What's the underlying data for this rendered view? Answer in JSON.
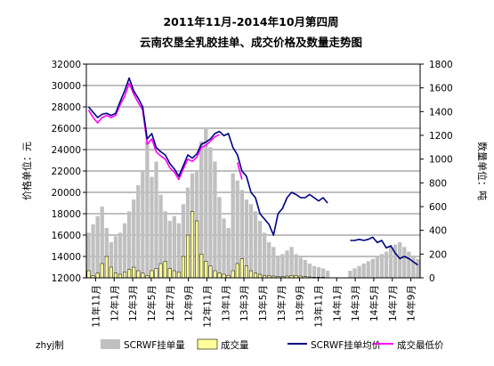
{
  "chart_data": {
    "type": "line",
    "title": "2011年11月-2014年10月第四周",
    "subtitle": "云南农垦全乳胶挂单、成交价格及数量走势图",
    "ylabel_left": "价格单位：元",
    "ylabel_right": "数量单位：吨",
    "y_left": {
      "min": 12000,
      "max": 32000,
      "ticks": [
        "12000",
        "14000",
        "16000",
        "18000",
        "20000",
        "22000",
        "24000",
        "26000",
        "28000",
        "30000",
        "32000"
      ]
    },
    "y_right": {
      "min": 0,
      "max": 1800,
      "ticks": [
        "0",
        "200",
        "400",
        "600",
        "800",
        "1000",
        "1200",
        "1400",
        "1600",
        "1800"
      ]
    },
    "x_ticks": [
      "11年11月",
      "12年1月",
      "12年3月",
      "12年5月",
      "12年7月",
      "12年9月",
      "12年11月",
      "13年1月",
      "13年3月",
      "13年5月",
      "13年7月",
      "13年9月",
      "13年11月",
      "14年1月",
      "14年3月",
      "14年5月",
      "14年7月",
      "14年9月"
    ],
    "credit": "zhyj制",
    "legend": [
      {
        "name": "SCRWF挂单量",
        "kind": "bar",
        "color": "#c0c0c0"
      },
      {
        "name": "成交量",
        "kind": "bar",
        "color": "#ffff99"
      },
      {
        "name": "SCRWF挂单均价",
        "kind": "line",
        "color": "#000080"
      },
      {
        "name": "成交最低价",
        "kind": "line",
        "color": "#ff00ff"
      }
    ],
    "series": [
      {
        "name": "SCRWF挂单均价",
        "axis": "left",
        "points": [
          [
            0,
            28000
          ],
          [
            1,
            27500
          ],
          [
            2,
            27000
          ],
          [
            3,
            27300
          ],
          [
            4,
            27400
          ],
          [
            5,
            27200
          ],
          [
            6,
            27400
          ],
          [
            7,
            28500
          ],
          [
            8,
            29500
          ],
          [
            9,
            30700
          ],
          [
            10,
            29500
          ],
          [
            11,
            28800
          ],
          [
            12,
            28000
          ],
          [
            13,
            25000
          ],
          [
            14,
            25500
          ],
          [
            15,
            24200
          ],
          [
            16,
            23800
          ],
          [
            17,
            23500
          ],
          [
            18,
            22700
          ],
          [
            19,
            22200
          ],
          [
            20,
            21500
          ],
          [
            21,
            22500
          ],
          [
            22,
            23500
          ],
          [
            23,
            23200
          ],
          [
            24,
            23600
          ],
          [
            25,
            24500
          ],
          [
            26,
            24700
          ],
          [
            27,
            25000
          ],
          [
            28,
            25500
          ],
          [
            29,
            25700
          ],
          [
            30,
            25300
          ],
          [
            31,
            25500
          ],
          [
            32,
            24200
          ],
          [
            33,
            23500
          ],
          [
            34,
            22000
          ],
          [
            35,
            21500
          ],
          [
            36,
            20000
          ],
          [
            37,
            19500
          ],
          [
            38,
            18000
          ],
          [
            39,
            17500
          ],
          [
            40,
            17000
          ],
          [
            41,
            16000
          ],
          [
            42,
            18000
          ],
          [
            43,
            18500
          ],
          [
            44,
            19500
          ],
          [
            45,
            20000
          ],
          [
            46,
            19800
          ],
          [
            47,
            19500
          ],
          [
            48,
            19500
          ],
          [
            49,
            19800
          ],
          [
            50,
            19500
          ],
          [
            51,
            19200
          ],
          [
            52,
            19500
          ],
          [
            53,
            19000
          ],
          [
            54,
            null
          ],
          [
            55,
            null
          ],
          [
            56,
            20000
          ],
          [
            57,
            null
          ],
          [
            58,
            15500
          ],
          [
            59,
            15500
          ],
          [
            60,
            15600
          ],
          [
            61,
            15500
          ],
          [
            62,
            15600
          ],
          [
            63,
            15800
          ],
          [
            64,
            15300
          ],
          [
            65,
            15500
          ],
          [
            66,
            14800
          ],
          [
            67,
            15000
          ],
          [
            68,
            14300
          ],
          [
            69,
            13800
          ],
          [
            70,
            14000
          ],
          [
            71,
            13800
          ],
          [
            72,
            13500
          ],
          [
            73,
            13200
          ]
        ]
      },
      {
        "name": "成交最低价",
        "axis": "left",
        "points": [
          [
            0,
            27700
          ],
          [
            1,
            27000
          ],
          [
            2,
            26500
          ],
          [
            3,
            27000
          ],
          [
            4,
            27200
          ],
          [
            5,
            27000
          ],
          [
            6,
            27200
          ],
          [
            7,
            28200
          ],
          [
            8,
            29000
          ],
          [
            9,
            30200
          ],
          [
            10,
            29200
          ],
          [
            11,
            28400
          ],
          [
            12,
            27700
          ],
          [
            13,
            24500
          ],
          [
            14,
            25000
          ],
          [
            15,
            23800
          ],
          [
            16,
            23400
          ],
          [
            17,
            23100
          ],
          [
            18,
            22300
          ],
          [
            19,
            21900
          ],
          [
            20,
            21200
          ],
          [
            21,
            22200
          ],
          [
            22,
            23100
          ],
          [
            23,
            22900
          ],
          [
            24,
            23300
          ],
          [
            25,
            24200
          ],
          [
            26,
            24400
          ],
          [
            27,
            24800
          ],
          [
            28,
            25200
          ],
          [
            29,
            25400
          ],
          [
            30,
            null
          ],
          [
            31,
            null
          ],
          [
            32,
            null
          ],
          [
            33,
            22800
          ],
          [
            34,
            21200
          ],
          [
            35,
            null
          ],
          [
            36,
            19700
          ]
        ]
      },
      {
        "name": "SCRWF挂单量",
        "axis": "right",
        "values": [
          380,
          450,
          520,
          600,
          420,
          300,
          350,
          380,
          460,
          560,
          660,
          780,
          900,
          1150,
          850,
          980,
          700,
          560,
          480,
          520,
          460,
          620,
          760,
          880,
          900,
          1150,
          1260,
          1100,
          980,
          680,
          500,
          420,
          880,
          820,
          740,
          660,
          620,
          560,
          480,
          380,
          300,
          260,
          180,
          200,
          230,
          260,
          200,
          170,
          150,
          120,
          100,
          90,
          80,
          60,
          0,
          0,
          0,
          0,
          60,
          80,
          100,
          120,
          140,
          160,
          180,
          200,
          220,
          260,
          280,
          300,
          260,
          220,
          180,
          160
        ]
      },
      {
        "name": "成交量",
        "axis": "right",
        "values": [
          60,
          20,
          40,
          120,
          180,
          90,
          40,
          30,
          50,
          70,
          90,
          60,
          40,
          20,
          60,
          80,
          120,
          140,
          80,
          60,
          50,
          180,
          360,
          560,
          480,
          200,
          140,
          100,
          60,
          40,
          30,
          20,
          60,
          120,
          160,
          100,
          60,
          40,
          30,
          20,
          20,
          15,
          10,
          10,
          15,
          20,
          20,
          15,
          10,
          8,
          5,
          5,
          5,
          0,
          0,
          0,
          0,
          0,
          0,
          0,
          0,
          0,
          0,
          0,
          0,
          0,
          0,
          0,
          0,
          0,
          0,
          0,
          0,
          0
        ]
      }
    ]
  }
}
